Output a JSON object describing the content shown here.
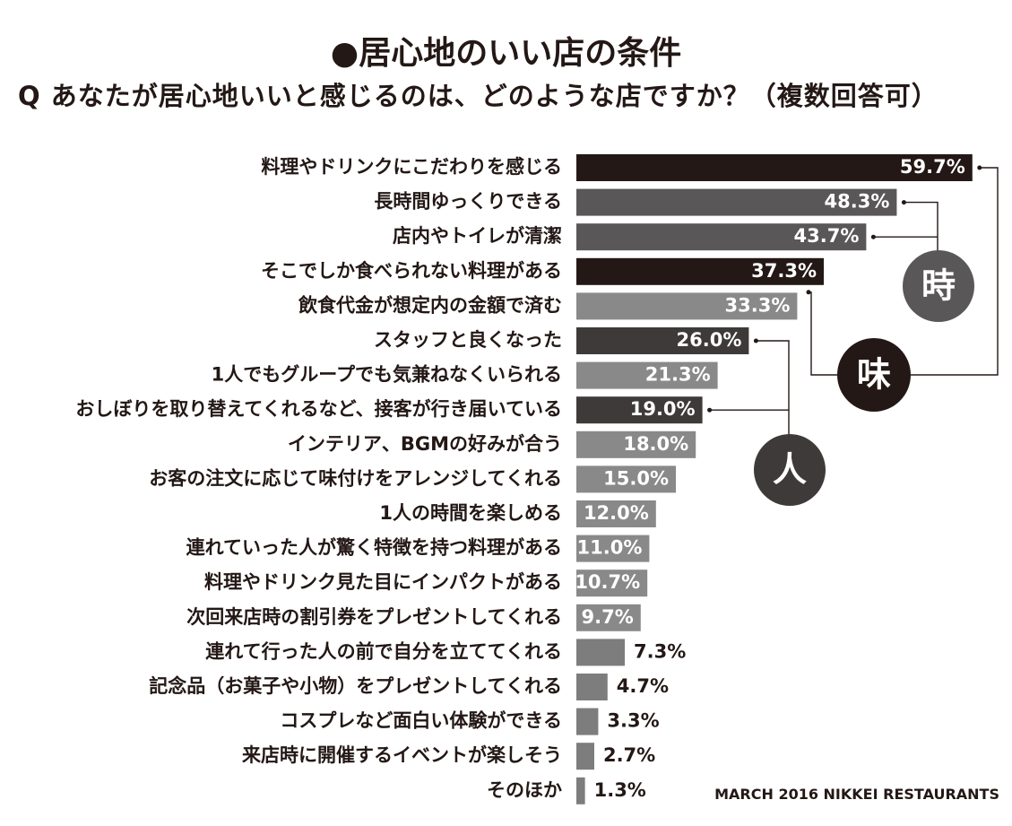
{
  "title": "●居心地のいい店の条件",
  "question": "Q あなたが居心地いいと感じるのは、どのような店ですか？（複数回答可）",
  "credit": "MARCH 2016  NIKKEI RESTAURANTS",
  "colors": {
    "taste": "#231815",
    "time": "#595757",
    "people": "#3e3a39",
    "other": "#898989",
    "small": "#7d7d7d",
    "label_on_bar": "#ffffff",
    "label_outside": "#231815"
  },
  "badges": [
    {
      "label": "時",
      "group": "time"
    },
    {
      "label": "味",
      "group": "taste"
    },
    {
      "label": "人",
      "group": "people"
    }
  ],
  "chart_data": {
    "type": "bar",
    "orientation": "horizontal",
    "title": "●居心地のいい店の条件",
    "subtitle": "Q あなたが居心地いいと感じるのは、どのような店ですか？（複数回答可）",
    "categories": [
      "料理やドリンクにこだわりを感じる",
      "長時間ゆっくりできる",
      "店内やトイレが清潔",
      "そこでしか食べられない料理がある",
      "飲食代金が想定内の金額で済む",
      "スタッフと良くなった",
      "1人でもグループでも気兼ねなくいられる",
      "おしぼりを取り替えてくれるなど、接客が行き届いている",
      "インテリア、BGMの好みが合う",
      "お客の注文に応じて味付けをアレンジしてくれる",
      "1人の時間を楽しめる",
      "連れていった人が驚く特徴を持つ料理がある",
      "料理やドリンク見た目にインパクトがある",
      "次回来店時の割引券をプレゼントしてくれる",
      "連れて行った人の前で自分を立ててくれる",
      "記念品（お菓子や小物）をプレゼントしてくれる",
      "コスプレなど面白い体験ができる",
      "来店時に開催するイベントが楽しそう",
      "そのほか"
    ],
    "values": [
      59.7,
      48.3,
      43.7,
      37.3,
      33.3,
      26.0,
      21.3,
      19.0,
      18.0,
      15.0,
      12.0,
      11.0,
      10.7,
      9.7,
      7.3,
      4.7,
      3.3,
      2.7,
      1.3
    ],
    "value_labels": [
      "59.7%",
      "48.3%",
      "43.7%",
      "37.3%",
      "33.3%",
      "26.0%",
      "21.3%",
      "19.0%",
      "18.0%",
      "15.0%",
      "12.0%",
      "11.0%",
      "10.7%",
      "9.7%",
      "7.3%",
      "4.7%",
      "3.3%",
      "2.7%",
      "1.3%"
    ],
    "groups": [
      "taste",
      "time",
      "time",
      "taste",
      "other",
      "people",
      "other",
      "people",
      "other",
      "other",
      "other",
      "other",
      "other",
      "other",
      "small",
      "small",
      "small",
      "small",
      "small"
    ],
    "unit": "%",
    "grid": false,
    "legend": "none"
  }
}
